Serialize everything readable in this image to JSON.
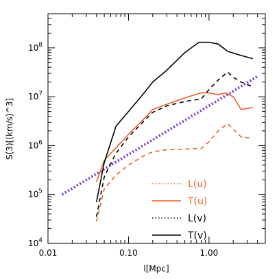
{
  "chart_data": {
    "type": "line",
    "title": "",
    "xlabel": "l[Mpc]",
    "ylabel": "S(3)[(km/s)^3]",
    "x_scale": "log",
    "y_scale": "log",
    "xlim": [
      0.01,
      5.0
    ],
    "ylim": [
      10000,
      500000000
    ],
    "grid": false,
    "legend_position": "bottom-right",
    "x_ticks": [
      {
        "value": 0.01,
        "label": "0.01"
      },
      {
        "value": 0.1,
        "label": "0.10"
      },
      {
        "value": 1.0,
        "label": "1.00"
      }
    ],
    "y_ticks": [
      {
        "value": 10000,
        "base": "10",
        "exp": "4"
      },
      {
        "value": 100000,
        "base": "10",
        "exp": "5"
      },
      {
        "value": 1000000,
        "base": "10",
        "exp": "6"
      },
      {
        "value": 10000000,
        "base": "10",
        "exp": "7"
      },
      {
        "value": 100000000,
        "base": "10",
        "exp": "8"
      }
    ],
    "series": [
      {
        "name": "",
        "color": "#7b2fd6",
        "style": "dotted-thick",
        "x": [
          0.015,
          4.0
        ],
        "y": [
          100000,
          26000000
        ]
      },
      {
        "name": "",
        "color": "#ef5b25",
        "style": "solid",
        "x": [
          0.04,
          0.05,
          0.07,
          0.1,
          0.15,
          0.2,
          0.3,
          0.5,
          0.8,
          1.0,
          1.3,
          1.6,
          2.0,
          2.5,
          3.5
        ],
        "y": [
          180000,
          500000,
          900000,
          1700000,
          3300000,
          5500000,
          7000000,
          9500000,
          12000000,
          12000000,
          11000000,
          12000000,
          10000000,
          5500000,
          6000000
        ]
      },
      {
        "name": "",
        "color": "#ef5b25",
        "style": "dashed",
        "x": [
          0.04,
          0.05,
          0.07,
          0.1,
          0.15,
          0.2,
          0.3,
          0.5,
          0.8,
          1.0,
          1.3,
          1.7,
          2.0,
          2.5,
          3.5
        ],
        "y": [
          28000,
          130000,
          250000,
          400000,
          600000,
          750000,
          820000,
          850000,
          870000,
          1200000,
          2000000,
          2800000,
          2200000,
          1500000,
          1400000
        ]
      },
      {
        "name": "",
        "color": "#000000",
        "style": "dashed",
        "x": [
          0.04,
          0.05,
          0.07,
          0.1,
          0.15,
          0.2,
          0.3,
          0.5,
          0.8,
          1.0,
          1.3,
          1.7,
          2.0,
          2.5,
          3.5
        ],
        "y": [
          35000,
          230000,
          700000,
          1500000,
          3000000,
          4800000,
          6500000,
          8000000,
          9000000,
          14000000,
          22000000,
          32000000,
          25000000,
          20000000,
          16000000
        ]
      },
      {
        "name": "",
        "color": "#000000",
        "style": "solid",
        "x": [
          0.04,
          0.05,
          0.07,
          0.1,
          0.15,
          0.2,
          0.3,
          0.5,
          0.75,
          1.0,
          1.3,
          1.7,
          2.5,
          3.5
        ],
        "y": [
          70000,
          450000,
          2500000,
          5000000,
          11000000,
          20000000,
          35000000,
          80000000,
          130000000,
          130000000,
          120000000,
          85000000,
          70000000,
          60000000
        ]
      }
    ],
    "legend": [
      {
        "label": "L(u)",
        "color": "#ef5b25",
        "line_color": "#ef5b25",
        "style": "dotted"
      },
      {
        "label": "T(u)",
        "color": "#ef5b25",
        "line_color": "#ef5b25",
        "style": "solid"
      },
      {
        "label": "L(v)",
        "color": "#000000",
        "line_color": "#000000",
        "style": "dotted"
      },
      {
        "label": "T(v)",
        "color": "#000000",
        "line_color": "#000000",
        "style": "solid"
      }
    ]
  }
}
